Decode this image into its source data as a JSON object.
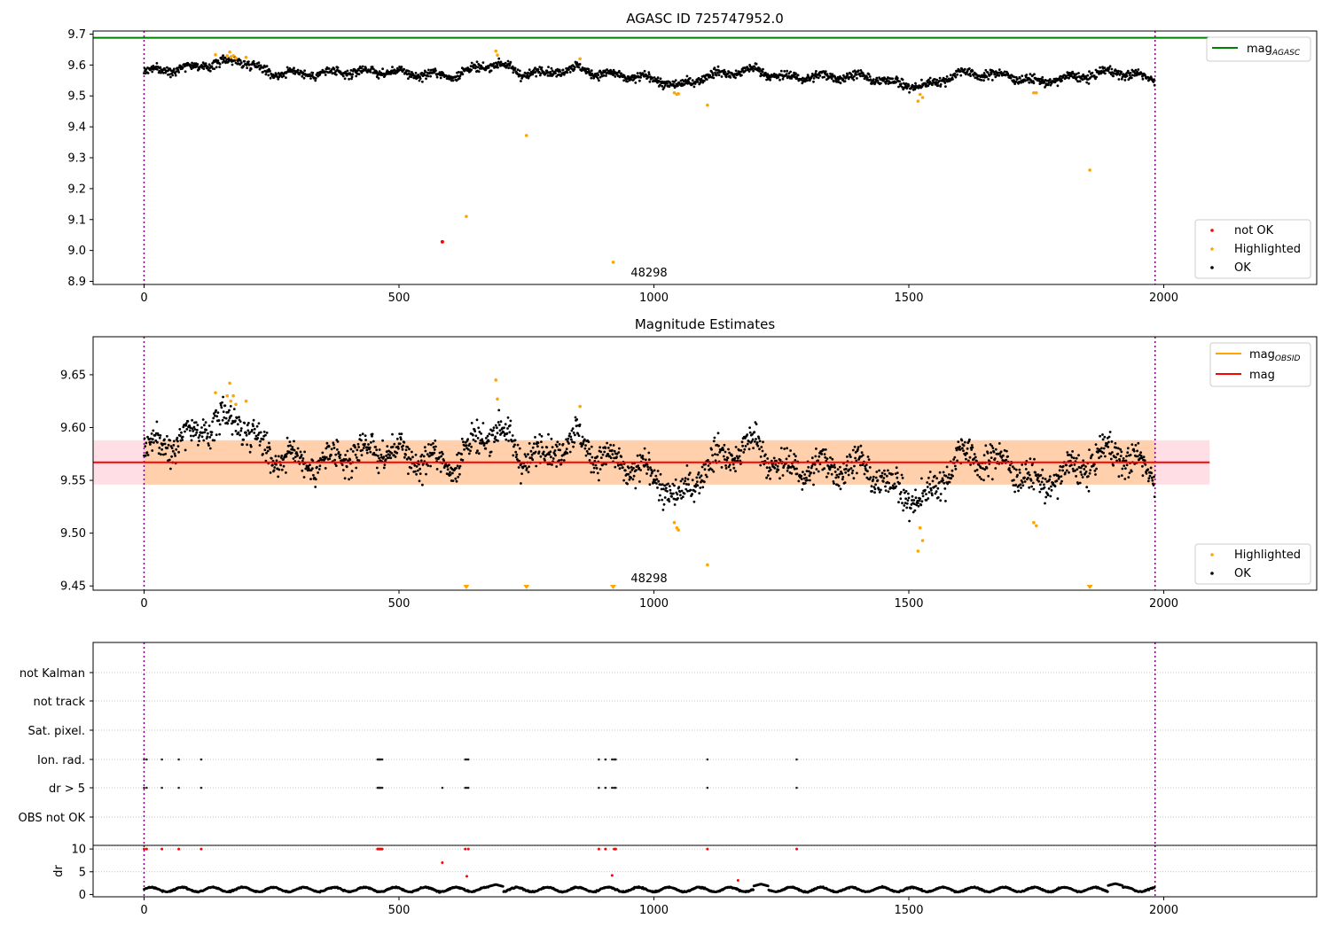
{
  "chart_data": [
    {
      "type": "scatter",
      "title": "AGASC ID 725747952.0",
      "xlabel": "",
      "ylabel": "",
      "xlim": [
        -100,
        2300
      ],
      "ylim": [
        8.89,
        9.71
      ],
      "x_ticks": [
        0,
        500,
        1000,
        1500,
        2000
      ],
      "x_tick_labels": [
        "0",
        "500",
        "1000",
        "1500",
        "2000"
      ],
      "y_ticks": [
        8.9,
        9.0,
        9.1,
        9.2,
        9.3,
        9.4,
        9.5,
        9.6,
        9.7
      ],
      "y_tick_labels": [
        "8.9",
        "9.0",
        "9.1",
        "9.2",
        "9.3",
        "9.4",
        "9.5",
        "9.6",
        "9.7"
      ],
      "obs_boundaries": [
        0,
        1983
      ],
      "annotation": "48298",
      "legends": [
        {
          "position": "upper right",
          "entries": [
            {
              "label": "mag",
              "sub": "AGASC",
              "color": "#008000",
              "marker": "line"
            }
          ]
        },
        {
          "position": "lower right",
          "entries": [
            {
              "label": "not OK",
              "color": "#ff0000",
              "marker": "dot"
            },
            {
              "label": "Highlighted",
              "color": "#ffa500",
              "marker": "dot"
            },
            {
              "label": "OK",
              "color": "#000000",
              "marker": "dot"
            }
          ]
        }
      ],
      "series": [
        {
          "name": "mag_AGASC",
          "color": "#008000",
          "x": [
            -100,
            2090
          ],
          "y": [
            9.688,
            9.688
          ],
          "style": "line"
        },
        {
          "name": "OK",
          "color": "#000000",
          "n_points": 1983,
          "x_range": [
            0,
            1983
          ],
          "trend": {
            "x": [
              0,
              150,
              180,
              250,
              350,
              450,
              600,
              690,
              750,
              850,
              900,
              1000,
              1050,
              1100,
              1150,
              1200,
              1250,
              1400,
              1500,
              1530,
              1600,
              1700,
              1750,
              1850,
              1900,
              1983
            ],
            "y": [
              9.578,
              9.605,
              9.62,
              9.575,
              9.572,
              9.58,
              9.565,
              9.605,
              9.57,
              9.59,
              9.57,
              9.555,
              9.53,
              9.565,
              9.575,
              9.585,
              9.56,
              9.565,
              9.535,
              9.53,
              9.575,
              9.565,
              9.545,
              9.565,
              9.58,
              9.555
            ]
          },
          "scatter_sd": 0.012
        },
        {
          "name": "Highlighted",
          "color": "#ffa500",
          "x": [
            140,
            163,
            168,
            170,
            175,
            180,
            200,
            632,
            690,
            693,
            750,
            855,
            920,
            1040,
            1045,
            1048,
            1105,
            1518,
            1522,
            1527,
            1745,
            1750,
            1855
          ],
          "y": [
            9.633,
            9.63,
            9.642,
            9.625,
            9.63,
            9.622,
            9.625,
            9.11,
            9.645,
            9.632,
            9.372,
            9.62,
            8.962,
            9.51,
            9.505,
            9.507,
            9.47,
            9.483,
            9.505,
            9.495,
            9.51,
            9.51,
            9.26
          ]
        },
        {
          "name": "not OK",
          "color": "#ff0000",
          "x": [
            585
          ],
          "y": [
            9.028
          ]
        }
      ]
    },
    {
      "type": "scatter",
      "title": "Magnitude Estimates",
      "xlabel": "",
      "ylabel": "",
      "xlim": [
        -100,
        2300
      ],
      "ylim": [
        9.446,
        9.686
      ],
      "x_ticks": [
        0,
        500,
        1000,
        1500,
        2000
      ],
      "x_tick_labels": [
        "0",
        "500",
        "1000",
        "1500",
        "2000"
      ],
      "y_ticks": [
        9.45,
        9.5,
        9.55,
        9.6,
        9.65
      ],
      "y_tick_labels": [
        "9.45",
        "9.50",
        "9.55",
        "9.60",
        "9.65"
      ],
      "obs_boundaries": [
        0,
        1983
      ],
      "annotation": "48298",
      "mag_level": 9.567,
      "bands": [
        {
          "x": [
            -100,
            2090
          ],
          "y": [
            9.546,
            9.588
          ],
          "color": "#ffc0cb"
        },
        {
          "x": [
            0,
            1983
          ],
          "y": [
            9.546,
            9.588
          ],
          "color": "#ffa500"
        }
      ],
      "legends": [
        {
          "position": "upper right",
          "entries": [
            {
              "label": "mag",
              "sub": "OBSID",
              "color": "#ffa500",
              "marker": "line"
            },
            {
              "label": "mag",
              "color": "#ff0000",
              "marker": "line"
            }
          ]
        },
        {
          "position": "lower right",
          "entries": [
            {
              "label": "Highlighted",
              "color": "#ffa500",
              "marker": "dot"
            },
            {
              "label": "OK",
              "color": "#000000",
              "marker": "dot"
            }
          ]
        }
      ],
      "series": [
        {
          "name": "mag",
          "color": "#ff0000",
          "x": [
            -100,
            2090
          ],
          "y": [
            9.567,
            9.567
          ],
          "style": "line"
        },
        {
          "name": "mag_OBSID",
          "color": "#ffa500",
          "x": [
            0,
            1983
          ],
          "y": [
            9.567,
            9.567
          ],
          "style": "line"
        },
        {
          "name": "OK",
          "color": "#000000",
          "n_points": 1983,
          "x_range": [
            0,
            1983
          ],
          "trend": {
            "x": [
              0,
              150,
              180,
              250,
              350,
              450,
              600,
              690,
              750,
              850,
              900,
              1000,
              1050,
              1100,
              1150,
              1200,
              1250,
              1400,
              1500,
              1530,
              1600,
              1700,
              1750,
              1850,
              1900,
              1983
            ],
            "y": [
              9.578,
              9.605,
              9.61,
              9.575,
              9.565,
              9.58,
              9.565,
              9.6,
              9.57,
              9.59,
              9.57,
              9.555,
              9.53,
              9.565,
              9.575,
              9.585,
              9.56,
              9.565,
              9.535,
              9.53,
              9.575,
              9.565,
              9.545,
              9.565,
              9.58,
              9.555
            ]
          },
          "scatter_sd": 0.012
        },
        {
          "name": "Highlighted",
          "color": "#ffa500",
          "x": [
            140,
            163,
            168,
            170,
            175,
            180,
            200,
            690,
            693,
            855,
            1040,
            1045,
            1048,
            1105,
            1518,
            1522,
            1527,
            1745,
            1750
          ],
          "y": [
            9.633,
            9.63,
            9.642,
            9.625,
            9.63,
            9.622,
            9.625,
            9.645,
            9.627,
            9.62,
            9.51,
            9.505,
            9.503,
            9.47,
            9.483,
            9.505,
            9.493,
            9.51,
            9.507
          ]
        },
        {
          "name": "Highlighted (below axis)",
          "color": "#ffa500",
          "marker": "triangle-down",
          "x": [
            632,
            750,
            920,
            1855
          ],
          "y": [
            9.446,
            9.446,
            9.446,
            9.446
          ]
        }
      ]
    },
    {
      "type": "scatter",
      "title": "",
      "xlim": [
        -100,
        2300
      ],
      "categories": [
        "not Kalman",
        "not track",
        "Sat. pixel.",
        "Ion. rad.",
        "dr > 5",
        "OBS not OK"
      ],
      "obs_boundaries": [
        0,
        1983
      ],
      "flags": {
        "Ion. rad.": [
          0,
          5,
          35,
          68,
          112,
          458,
          460,
          462,
          464,
          467,
          630,
          633,
          636,
          892,
          905,
          918,
          922,
          925,
          1105,
          1280
        ],
        "dr > 5": [
          0,
          5,
          35,
          68,
          112,
          458,
          460,
          462,
          464,
          467,
          585,
          630,
          633,
          636,
          892,
          905,
          918,
          922,
          925,
          1105,
          1280
        ]
      }
    },
    {
      "type": "scatter",
      "title": "",
      "xlabel": "",
      "ylabel": "dr",
      "xlim": [
        -100,
        2300
      ],
      "ylim": [
        -0.5,
        10.8
      ],
      "x_ticks": [
        0,
        500,
        1000,
        1500,
        2000
      ],
      "x_tick_labels": [
        "0",
        "500",
        "1000",
        "1500",
        "2000"
      ],
      "y_ticks": [
        0,
        5,
        10
      ],
      "y_tick_labels": [
        "0",
        "5",
        "10"
      ],
      "obs_boundaries": [
        0,
        1983
      ],
      "series": [
        {
          "name": "dr (OK)",
          "color": "#000000",
          "n_points": 1983,
          "x_range": [
            0,
            1983
          ],
          "baseline": 1.1,
          "wave_amplitude": 0.5,
          "bumps": {
            "x": [
              690,
              1210,
              1905
            ],
            "y": [
              2.2,
              2.3,
              2.4
            ]
          }
        },
        {
          "name": "dr (flagged)",
          "color": "#ff0000",
          "x": [
            0,
            5,
            35,
            68,
            112,
            458,
            460,
            462,
            464,
            467,
            585,
            630,
            633,
            636,
            892,
            905,
            918,
            922,
            925,
            1105,
            1165,
            1280
          ],
          "y": [
            10,
            10,
            10,
            10,
            10,
            10,
            10,
            10,
            10,
            10,
            7.0,
            10,
            4.0,
            10,
            10,
            10,
            4.2,
            10,
            10,
            10,
            3.1,
            10
          ]
        }
      ]
    }
  ]
}
